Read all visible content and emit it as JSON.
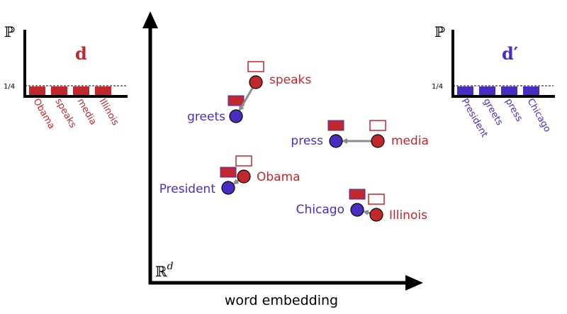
{
  "colors": {
    "red": "#c0282d",
    "blue": "#4a2cc0",
    "arrow": "#8c8c8c"
  },
  "left_hist": {
    "ylabel": "ℙ",
    "title": "d",
    "tick_label": "1/4",
    "bars": [
      "Obama",
      "speaks",
      "media",
      "Illinois"
    ]
  },
  "right_hist": {
    "ylabel": "ℙ",
    "title": "d′",
    "tick_label": "1/4",
    "bars": [
      "President",
      "greets",
      "press",
      "Chicago"
    ]
  },
  "embedding": {
    "space_label": "ℝ",
    "space_superscript": "d",
    "xlabel": "word embedding",
    "pairs": [
      {
        "source": "speaks",
        "target": "greets"
      },
      {
        "source": "media",
        "target": "press"
      },
      {
        "source": "Obama",
        "target": "President"
      },
      {
        "source": "Illinois",
        "target": "Chicago"
      }
    ]
  }
}
